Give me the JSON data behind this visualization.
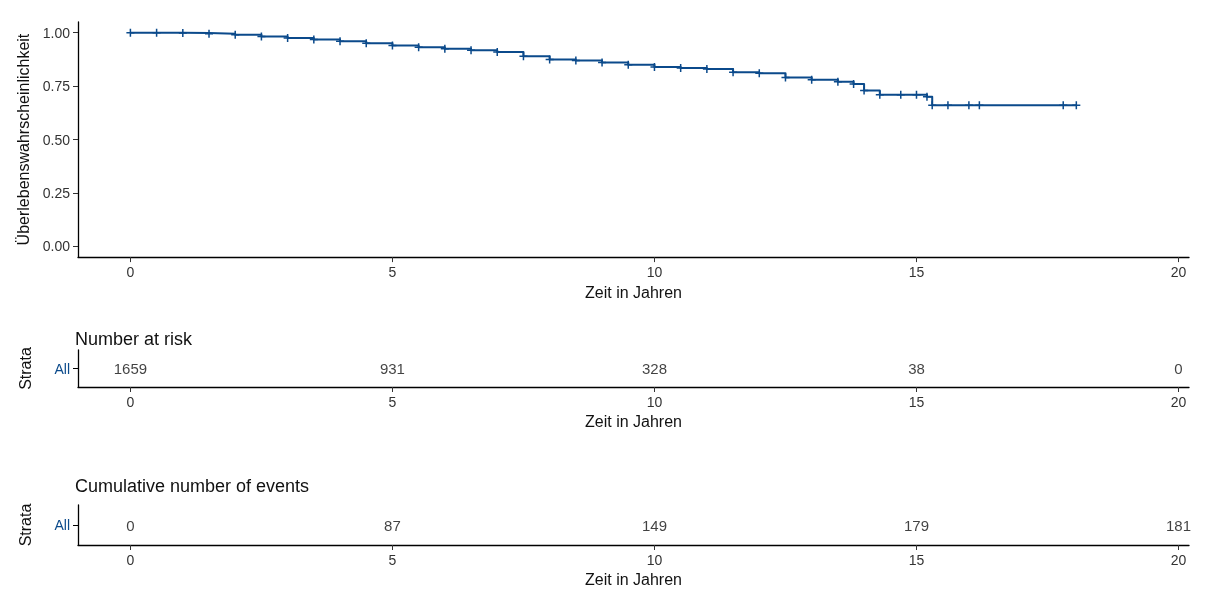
{
  "chart_data": [
    {
      "type": "step",
      "xlabel": "Zeit in Jahren",
      "ylabel": "Überlebenswahrscheinlichkeit",
      "marker": "cross",
      "line_style": "solid",
      "grid": false,
      "series": [
        {
          "color": "#0b4a8b",
          "x": [
            0,
            0.5,
            1,
            1.5,
            2,
            2.5,
            3,
            3.5,
            4,
            4.5,
            5,
            5.5,
            6,
            6.5,
            7,
            7.5,
            8,
            8.5,
            9,
            9.5,
            10,
            10.5,
            11,
            11.5,
            12,
            12.5,
            13,
            13.5,
            13.8,
            14,
            14.3,
            14.7,
            15,
            15.2,
            15.3,
            15.6,
            16,
            16.2,
            17.8,
            18.05
          ],
          "values": [
            1.0,
            1.0,
            0.998,
            0.995,
            0.99,
            0.982,
            0.975,
            0.968,
            0.96,
            0.95,
            0.94,
            0.932,
            0.925,
            0.918,
            0.91,
            0.89,
            0.875,
            0.87,
            0.86,
            0.85,
            0.84,
            0.835,
            0.83,
            0.815,
            0.81,
            0.79,
            0.78,
            0.77,
            0.76,
            0.73,
            0.71,
            0.71,
            0.71,
            0.7,
            0.66,
            0.66,
            0.66,
            0.66,
            0.66,
            0.66
          ]
        }
      ],
      "xlim": [
        -1,
        20.2
      ],
      "xticks": [
        0,
        5,
        10,
        15,
        20
      ],
      "ylim": [
        -0.05,
        1.05
      ],
      "yticks": [
        {
          "value": 0,
          "label": "0.00"
        },
        {
          "value": 0.25,
          "label": "0.25"
        },
        {
          "value": 0.5,
          "label": "0.50"
        },
        {
          "value": 0.75,
          "label": "0.75"
        },
        {
          "value": 1,
          "label": "1.00"
        }
      ]
    },
    {
      "type": "heatmap",
      "title": "Number at risk",
      "xlabel": "Zeit in Jahren",
      "ylabel": "Strata",
      "y_categories": [
        "All"
      ],
      "color": "#0b4a8b",
      "data_labels": true,
      "x": [
        0,
        5,
        10,
        15,
        20
      ],
      "cells": [
        [
          1659,
          931,
          328,
          38,
          0
        ]
      ],
      "xlim": [
        -1,
        20.2
      ],
      "xticks": [
        0,
        5,
        10,
        15,
        20
      ]
    },
    {
      "type": "heatmap",
      "title": "Cumulative number of events",
      "xlabel": "Zeit in Jahren",
      "ylabel": "Strata",
      "y_categories": [
        "All"
      ],
      "color": "#0b4a8b",
      "data_labels": true,
      "x": [
        0,
        5,
        10,
        15,
        20
      ],
      "cells": [
        [
          0,
          87,
          149,
          179,
          181
        ]
      ],
      "xlim": [
        -1,
        20.2
      ],
      "xticks": [
        0,
        5,
        10,
        15,
        20
      ]
    }
  ]
}
